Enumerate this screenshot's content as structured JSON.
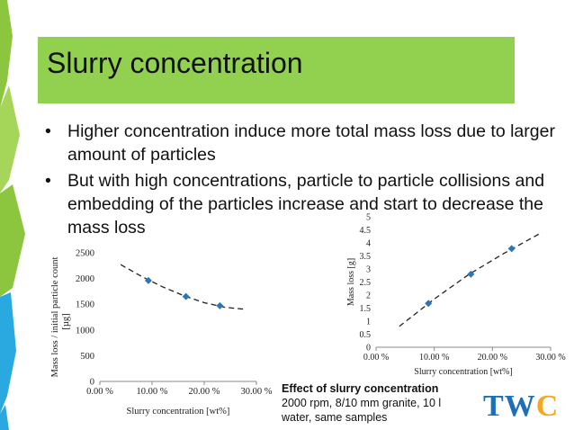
{
  "slide": {
    "title": "Slurry concentration",
    "bullets": [
      "Higher concentration induce more total mass loss due to larger amount of particles",
      "But with high concentrations, particle to particle collisions and embedding of the particles increase and start to decrease the mass loss"
    ],
    "bullet_glyph": "•",
    "caption": {
      "title": "Effect of slurry concentration",
      "line1": "2000 rpm, 8/10 mm granite, 10 l",
      "line2": "water, same samples"
    },
    "logo": {
      "t": "T",
      "w": "W",
      "c": "C"
    },
    "colors": {
      "title_band": "#92d050",
      "decor_blue": "#2aa8e0",
      "decor_green": "#8cc63f",
      "marker": "#2e75b6"
    }
  },
  "chart_data": [
    {
      "type": "scatter",
      "xlabel": "Slurry concentration [wt%]",
      "ylabel": "Mass loss / initial particle count [µg]",
      "xticks": [
        "0.00 %",
        "10.00 %",
        "20.00 %",
        "30.00 %"
      ],
      "yticks": [
        "0",
        "500",
        "1000",
        "1500",
        "2000",
        "2500"
      ],
      "xlim": [
        0,
        30
      ],
      "ylim": [
        0,
        2500
      ],
      "points": [
        {
          "x": 9.3,
          "y": 1960
        },
        {
          "x": 16.5,
          "y": 1650
        },
        {
          "x": 23.0,
          "y": 1470
        }
      ],
      "trendline": {
        "style": "dashed",
        "x": [
          4,
          8,
          12,
          16,
          20,
          24,
          28
        ],
        "y": [
          2270,
          2040,
          1840,
          1670,
          1530,
          1440,
          1400
        ]
      }
    },
    {
      "type": "scatter",
      "xlabel": "Slurry concentration [wt%]",
      "ylabel": "Mass loss [g]",
      "xticks": [
        "0.00 %",
        "10.00 %",
        "20.00 %",
        "30.00 %"
      ],
      "yticks": [
        "0",
        "0.5",
        "1",
        "1.5",
        "2",
        "2.5",
        "3",
        "3.5",
        "4",
        "4.5",
        "5"
      ],
      "xlim": [
        0,
        30
      ],
      "ylim": [
        0,
        5
      ],
      "points": [
        {
          "x": 9.0,
          "y": 1.68
        },
        {
          "x": 16.3,
          "y": 2.8
        },
        {
          "x": 23.3,
          "y": 3.78
        }
      ],
      "trendline": {
        "style": "dashed",
        "x": [
          4,
          10,
          16,
          22,
          28.5
        ],
        "y": [
          0.8,
          1.85,
          2.8,
          3.6,
          4.4
        ]
      }
    }
  ]
}
